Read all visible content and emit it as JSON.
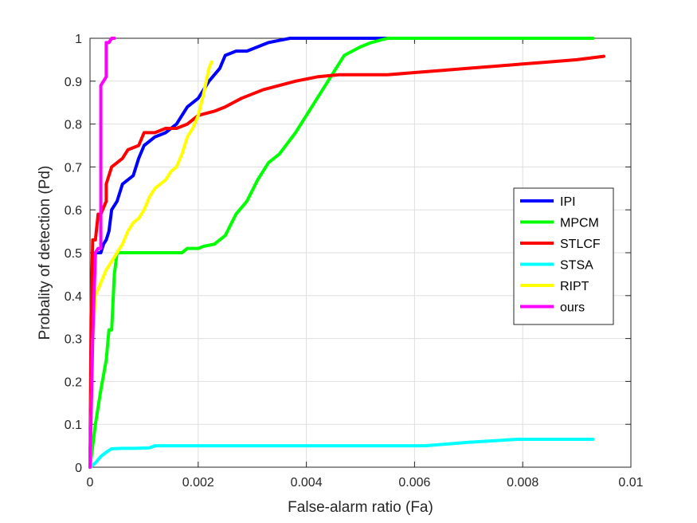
{
  "chart_data": {
    "type": "line",
    "xlabel": "False-alarm ratio (Fa)",
    "ylabel": "Probality of detection (Pd)",
    "xlim": [
      0,
      0.01
    ],
    "ylim": [
      0,
      1
    ],
    "xticks": [
      0,
      0.002,
      0.004,
      0.006,
      0.008,
      0.01
    ],
    "xtick_labels": [
      "0",
      "0.002",
      "0.004",
      "0.006",
      "0.008",
      "0.01"
    ],
    "yticks": [
      0,
      0.1,
      0.2,
      0.3,
      0.4,
      0.5,
      0.6,
      0.7,
      0.8,
      0.9,
      1
    ],
    "ytick_labels": [
      "0",
      "0.1",
      "0.2",
      "0.3",
      "0.4",
      "0.5",
      "0.6",
      "0.7",
      "0.8",
      "0.9",
      "1"
    ],
    "grid": true,
    "legend_position": "right",
    "series": [
      {
        "name": "IPI",
        "color": "#0000ff",
        "x": [
          0,
          5e-05,
          0.0001,
          0.00015,
          0.0002,
          0.00025,
          0.0003,
          0.00035,
          0.0004,
          0.00045,
          0.0005,
          0.0006,
          0.0007,
          0.0008,
          0.0009,
          0.001,
          0.0011,
          0.0012,
          0.0014,
          0.0016,
          0.0018,
          0.002,
          0.0022,
          0.0024,
          0.0025,
          0.0027,
          0.0029,
          0.0031,
          0.0033,
          0.0035,
          0.0037,
          0.004,
          0.0045,
          0.005,
          0.0055
        ],
        "y": [
          0,
          0.38,
          0.5,
          0.5,
          0.5,
          0.52,
          0.53,
          0.55,
          0.6,
          0.61,
          0.62,
          0.66,
          0.67,
          0.68,
          0.72,
          0.75,
          0.76,
          0.77,
          0.78,
          0.8,
          0.84,
          0.86,
          0.9,
          0.93,
          0.96,
          0.97,
          0.97,
          0.98,
          0.99,
          0.995,
          1,
          1,
          1,
          1,
          1
        ]
      },
      {
        "name": "MPCM",
        "color": "#00ff00",
        "x": [
          0,
          0.0001,
          0.0002,
          0.0003,
          0.00035,
          0.0004,
          0.00045,
          0.0005,
          0.001,
          0.0017,
          0.0018,
          0.002,
          0.0021,
          0.0023,
          0.0025,
          0.0027,
          0.0029,
          0.0031,
          0.0033,
          0.0035,
          0.0038,
          0.0041,
          0.0044,
          0.0047,
          0.005,
          0.0052,
          0.0055,
          0.006,
          0.007,
          0.008,
          0.0093
        ],
        "y": [
          0,
          0.1,
          0.18,
          0.25,
          0.32,
          0.32,
          0.45,
          0.5,
          0.5,
          0.5,
          0.51,
          0.51,
          0.515,
          0.52,
          0.54,
          0.59,
          0.62,
          0.67,
          0.71,
          0.73,
          0.78,
          0.84,
          0.9,
          0.96,
          0.98,
          0.99,
          1,
          1,
          1,
          1,
          1
        ]
      },
      {
        "name": "STLCF",
        "color": "#ff0000",
        "x": [
          0,
          2e-05,
          5e-05,
          0.0001,
          0.00015,
          0.0002,
          0.0003,
          0.0003,
          0.0004,
          0.0004,
          0.0006,
          0.0007,
          0.0009,
          0.001,
          0.0012,
          0.0014,
          0.0016,
          0.0018,
          0.002,
          0.0023,
          0.0025,
          0.0028,
          0.0032,
          0.0035,
          0.0038,
          0.0042,
          0.0046,
          0.005,
          0.0055,
          0.006,
          0.0065,
          0.007,
          0.0075,
          0.008,
          0.0085,
          0.009,
          0.0095
        ],
        "y": [
          0,
          0.35,
          0.53,
          0.53,
          0.59,
          0.59,
          0.62,
          0.66,
          0.7,
          0.7,
          0.72,
          0.74,
          0.75,
          0.78,
          0.78,
          0.79,
          0.79,
          0.8,
          0.82,
          0.83,
          0.84,
          0.86,
          0.88,
          0.89,
          0.9,
          0.91,
          0.915,
          0.915,
          0.915,
          0.92,
          0.925,
          0.93,
          0.935,
          0.94,
          0.945,
          0.95,
          0.958
        ]
      },
      {
        "name": "STSA",
        "color": "#00ffff",
        "x": [
          0,
          5e-05,
          0.0001,
          0.0002,
          0.0003,
          0.0004,
          0.0006,
          0.0008,
          0.0011,
          0.0012,
          0.002,
          0.003,
          0.004,
          0.005,
          0.006,
          0.0062,
          0.007,
          0.0079,
          0.0093
        ],
        "y": [
          0,
          0.005,
          0.01,
          0.025,
          0.035,
          0.043,
          0.044,
          0.044,
          0.045,
          0.05,
          0.05,
          0.05,
          0.05,
          0.05,
          0.05,
          0.05,
          0.058,
          0.065,
          0.065
        ]
      },
      {
        "name": "RIPT",
        "color": "#ffff00",
        "x": [
          0,
          5e-05,
          0.0001,
          0.0002,
          0.0003,
          0.0004,
          0.0005,
          0.0006,
          0.0007,
          0.0008,
          0.0009,
          0.001,
          0.0011,
          0.0012,
          0.0013,
          0.0014,
          0.0015,
          0.0016,
          0.0017,
          0.0018,
          0.0019,
          0.002,
          0.0021,
          0.0022,
          0.00225
        ],
        "y": [
          0,
          0.3,
          0.4,
          0.43,
          0.46,
          0.48,
          0.5,
          0.52,
          0.55,
          0.57,
          0.58,
          0.6,
          0.63,
          0.65,
          0.66,
          0.67,
          0.69,
          0.7,
          0.73,
          0.77,
          0.79,
          0.82,
          0.87,
          0.93,
          0.945
        ]
      },
      {
        "name": "ours",
        "color": "#ff00ff",
        "x": [
          0,
          5e-05,
          0.0001,
          0.00015,
          0.0002,
          0.0002,
          0.00025,
          0.0003,
          0.0003,
          0.00035,
          0.0004,
          0.00045
        ],
        "y": [
          0,
          0.3,
          0.5,
          0.51,
          0.51,
          0.89,
          0.9,
          0.91,
          0.99,
          0.99,
          1,
          1
        ]
      }
    ]
  }
}
